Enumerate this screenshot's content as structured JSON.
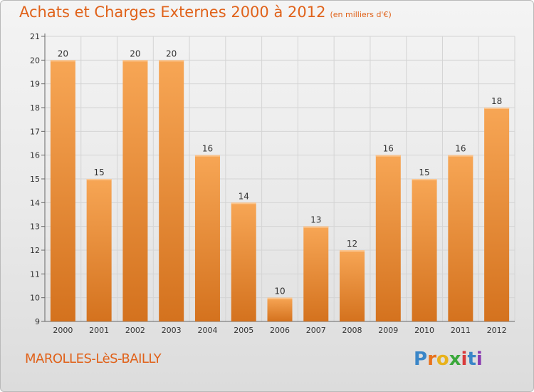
{
  "header": {
    "title": "Achats et Charges Externes 2000 à 2012",
    "subtitle": "(en milliers d'€)"
  },
  "footer": {
    "commune": "MAROLLES-LèS-BAILLY",
    "logo_text": "Proxiti",
    "logo_colors": [
      "#3a86c8",
      "#e8721c",
      "#e8b21c",
      "#3aa83a",
      "#d83a3a",
      "#3a86c8",
      "#8a3ab0"
    ]
  },
  "colors": {
    "bar_top": "#f7a655",
    "bar_bottom": "#d4721e",
    "grid": "#d4d4d4",
    "axis_text": "#333333",
    "accent": "#e0621a"
  },
  "chart_data": {
    "type": "bar",
    "categories": [
      "2000",
      "2001",
      "2002",
      "2003",
      "2004",
      "2005",
      "2006",
      "2007",
      "2008",
      "2009",
      "2010",
      "2011",
      "2012"
    ],
    "values": [
      20,
      15,
      20,
      20,
      16,
      14,
      10,
      13,
      12,
      16,
      15,
      16,
      18
    ],
    "data_labels": [
      "20",
      "15",
      "20",
      "20",
      "16",
      "14",
      "10",
      "13",
      "12",
      "16",
      "15",
      "16",
      "18"
    ],
    "title": "Achats et Charges Externes 2000 à 2012",
    "subtitle": "(en milliers d'€)",
    "ylim": [
      9,
      21
    ],
    "yticks": [
      9,
      10,
      11,
      12,
      13,
      14,
      15,
      16,
      17,
      18,
      19,
      20,
      21
    ],
    "grid": true
  }
}
